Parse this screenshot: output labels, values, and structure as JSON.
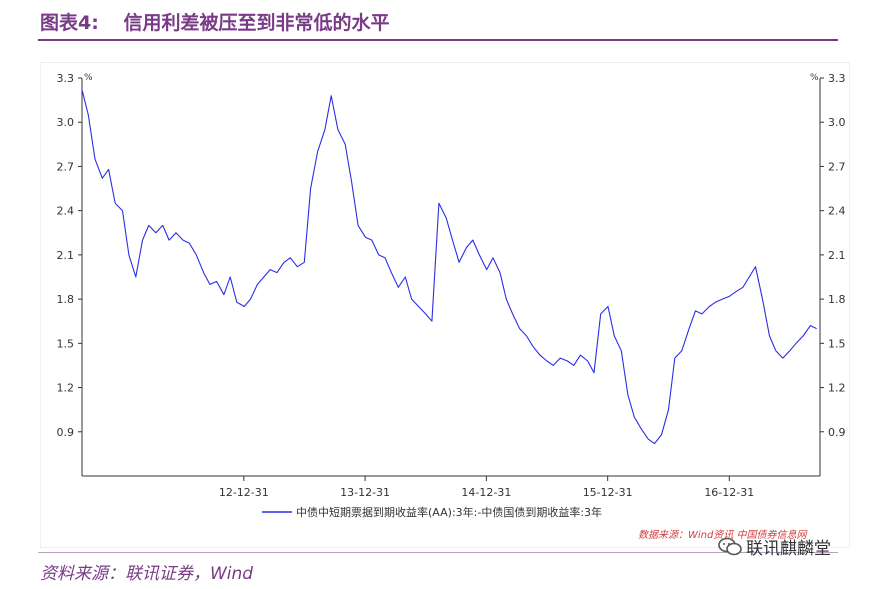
{
  "header": {
    "fig_label": "图表4:",
    "title": "信用利差被压至到非常低的水平"
  },
  "footer": {
    "source": "资料来源：联讯证券，Wind",
    "watermark": "联讯麒麟堂"
  },
  "chart_data": {
    "type": "line",
    "title": "",
    "ylabel_left": "%",
    "ylabel_right": "%",
    "ylim": [
      0.6,
      3.3
    ],
    "yticks": [
      0.9,
      1.2,
      1.5,
      1.8,
      2.1,
      2.4,
      2.7,
      3.0,
      3.3
    ],
    "ytick_labels": [
      "0.9",
      "1.2",
      "1.5",
      "1.8",
      "2.1",
      "2.4",
      "2.7",
      "3.0",
      "3.3"
    ],
    "xlim": [
      "2011-09-01",
      "2017-09-30"
    ],
    "xticks": [
      "2012-12-31",
      "2013-12-31",
      "2014-12-31",
      "2015-12-31",
      "2016-12-31"
    ],
    "xtick_labels": [
      "12-12-31",
      "13-12-31",
      "14-12-31",
      "15-12-31",
      "16-12-31"
    ],
    "grid": false,
    "legend_position": "bottom",
    "data_source_note": "数据来源：Wind资讯 中国债券信息网",
    "series": [
      {
        "name": "中债中短期票据到期收益率(AA):3年:-中债国债到期收益率:3年",
        "color": "#2a2ee6",
        "x": [
          "2011-09-01",
          "2011-09-20",
          "2011-10-10",
          "2011-11-01",
          "2011-11-20",
          "2011-12-10",
          "2012-01-01",
          "2012-01-20",
          "2012-02-10",
          "2012-03-01",
          "2012-03-20",
          "2012-04-10",
          "2012-05-01",
          "2012-05-20",
          "2012-06-10",
          "2012-07-01",
          "2012-07-20",
          "2012-08-10",
          "2012-09-01",
          "2012-09-20",
          "2012-10-10",
          "2012-11-01",
          "2012-11-20",
          "2012-12-10",
          "2013-01-01",
          "2013-01-20",
          "2013-02-10",
          "2013-03-01",
          "2013-03-20",
          "2013-04-10",
          "2013-05-01",
          "2013-05-20",
          "2013-06-10",
          "2013-07-01",
          "2013-07-20",
          "2013-08-10",
          "2013-09-01",
          "2013-09-20",
          "2013-10-10",
          "2013-11-01",
          "2013-11-20",
          "2013-12-10",
          "2014-01-01",
          "2014-01-20",
          "2014-02-10",
          "2014-03-01",
          "2014-03-20",
          "2014-04-10",
          "2014-05-01",
          "2014-05-20",
          "2014-06-10",
          "2014-07-01",
          "2014-07-20",
          "2014-08-10",
          "2014-09-01",
          "2014-09-20",
          "2014-10-10",
          "2014-11-01",
          "2014-11-20",
          "2014-12-10",
          "2015-01-01",
          "2015-01-20",
          "2015-02-10",
          "2015-03-01",
          "2015-03-20",
          "2015-04-10",
          "2015-05-01",
          "2015-05-20",
          "2015-06-10",
          "2015-07-01",
          "2015-07-20",
          "2015-08-10",
          "2015-09-01",
          "2015-09-20",
          "2015-10-10",
          "2015-11-01",
          "2015-11-20",
          "2015-12-10",
          "2016-01-01",
          "2016-01-20",
          "2016-02-10",
          "2016-03-01",
          "2016-03-20",
          "2016-04-10",
          "2016-05-01",
          "2016-05-20",
          "2016-06-10",
          "2016-07-01",
          "2016-07-20",
          "2016-08-10",
          "2016-09-01",
          "2016-09-20",
          "2016-10-10",
          "2016-11-01",
          "2016-11-20",
          "2016-12-10",
          "2017-01-01",
          "2017-01-20",
          "2017-02-10",
          "2017-03-01",
          "2017-03-20",
          "2017-04-10",
          "2017-05-01",
          "2017-05-20",
          "2017-06-10",
          "2017-07-01",
          "2017-07-20",
          "2017-08-10",
          "2017-09-01",
          "2017-09-20"
        ],
        "values": [
          3.22,
          3.05,
          2.75,
          2.62,
          2.68,
          2.45,
          2.4,
          2.1,
          1.95,
          2.2,
          2.3,
          2.25,
          2.3,
          2.2,
          2.25,
          2.2,
          2.18,
          2.1,
          1.98,
          1.9,
          1.92,
          1.83,
          1.95,
          1.78,
          1.75,
          1.8,
          1.9,
          1.95,
          2.0,
          1.98,
          2.05,
          2.08,
          2.02,
          2.05,
          2.55,
          2.8,
          2.95,
          3.18,
          2.95,
          2.85,
          2.6,
          2.3,
          2.22,
          2.2,
          2.1,
          2.08,
          1.98,
          1.88,
          1.95,
          1.8,
          1.75,
          1.7,
          1.65,
          2.45,
          2.35,
          2.2,
          2.05,
          2.15,
          2.2,
          2.1,
          2.0,
          2.08,
          1.98,
          1.8,
          1.7,
          1.6,
          1.55,
          1.48,
          1.42,
          1.38,
          1.35,
          1.4,
          1.38,
          1.35,
          1.42,
          1.38,
          1.3,
          1.7,
          1.75,
          1.55,
          1.45,
          1.15,
          1.0,
          0.92,
          0.85,
          0.82,
          0.88,
          1.05,
          1.4,
          1.45,
          1.6,
          1.72,
          1.7,
          1.75,
          1.78,
          1.8,
          1.82,
          1.85,
          1.88,
          1.95,
          2.02,
          1.8,
          1.55,
          1.45,
          1.4,
          1.45,
          1.5,
          1.55,
          1.62,
          1.6
        ]
      }
    ]
  }
}
